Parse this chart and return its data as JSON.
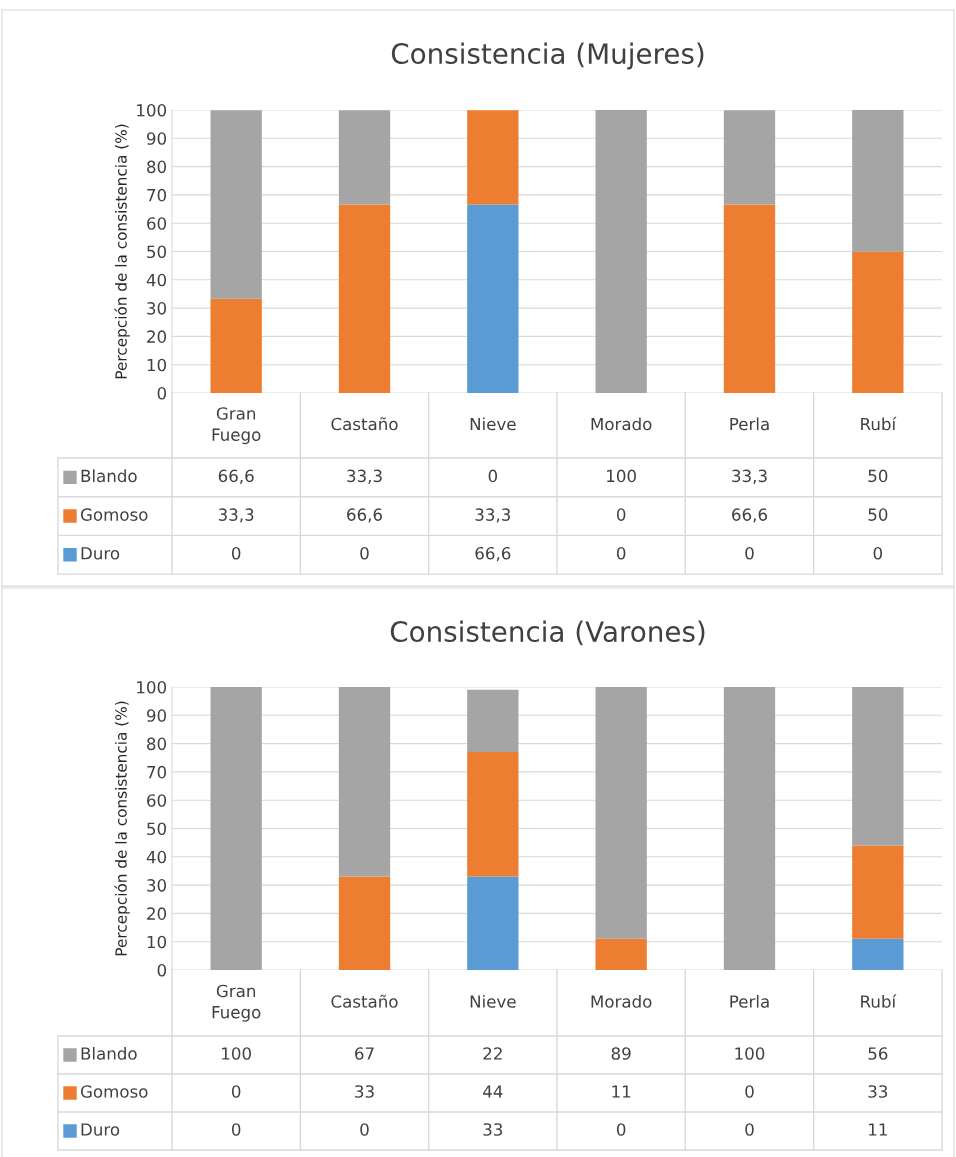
{
  "chart_data": [
    {
      "type": "bar",
      "legend": "bottom",
      "title": "Consistencia (Mujeres)",
      "ylabel": "Percepción de la consistencia (%)",
      "stacked": true,
      "categories": [
        "Gran Fuego",
        "Castaño",
        "Nieve",
        "Morado",
        "Perla",
        "Rubí"
      ],
      "ylim": [
        0,
        100
      ],
      "yticks": [
        0,
        10,
        20,
        30,
        40,
        50,
        60,
        70,
        80,
        90,
        100
      ],
      "grid": "y",
      "series": [
        {
          "name": "Duro",
          "color": "#5b9bd5",
          "values": [
            0,
            0,
            66.6,
            0,
            0,
            0
          ],
          "value_labels": [
            "0",
            "0",
            "66,6",
            "0",
            "0",
            "0"
          ]
        },
        {
          "name": "Gomoso",
          "color": "#ed7d31",
          "values": [
            33.3,
            66.6,
            33.3,
            0,
            66.6,
            50
          ],
          "value_labels": [
            "33,3",
            "66,6",
            "33,3",
            "0",
            "66,6",
            "50"
          ]
        },
        {
          "name": "Blando",
          "color": "#a5a5a5",
          "values": [
            66.6,
            33.3,
            0,
            100,
            33.3,
            50
          ],
          "value_labels": [
            "66,6",
            "33,3",
            "0",
            "100",
            "33,3",
            "50"
          ]
        }
      ]
    },
    {
      "type": "bar",
      "legend": "bottom",
      "title": "Consistencia (Varones)",
      "ylabel": "Percepción de la consistencia (%)",
      "stacked": true,
      "categories": [
        "Gran Fuego",
        "Castaño",
        "Nieve",
        "Morado",
        "Perla",
        "Rubí"
      ],
      "ylim": [
        0,
        100
      ],
      "yticks": [
        0,
        10,
        20,
        30,
        40,
        50,
        60,
        70,
        80,
        90,
        100
      ],
      "grid": "y",
      "series": [
        {
          "name": "Duro",
          "color": "#5b9bd5",
          "values": [
            0,
            0,
            33,
            0,
            0,
            11
          ],
          "value_labels": [
            "0",
            "0",
            "33",
            "0",
            "0",
            "11"
          ]
        },
        {
          "name": "Gomoso",
          "color": "#ed7d31",
          "values": [
            0,
            33,
            44,
            11,
            0,
            33
          ],
          "value_labels": [
            "0",
            "33",
            "44",
            "11",
            "0",
            "33"
          ]
        },
        {
          "name": "Blando",
          "color": "#a5a5a5",
          "values": [
            100,
            67,
            22,
            89,
            100,
            56
          ],
          "value_labels": [
            "100",
            "67",
            "22",
            "89",
            "100",
            "56"
          ]
        }
      ]
    }
  ]
}
